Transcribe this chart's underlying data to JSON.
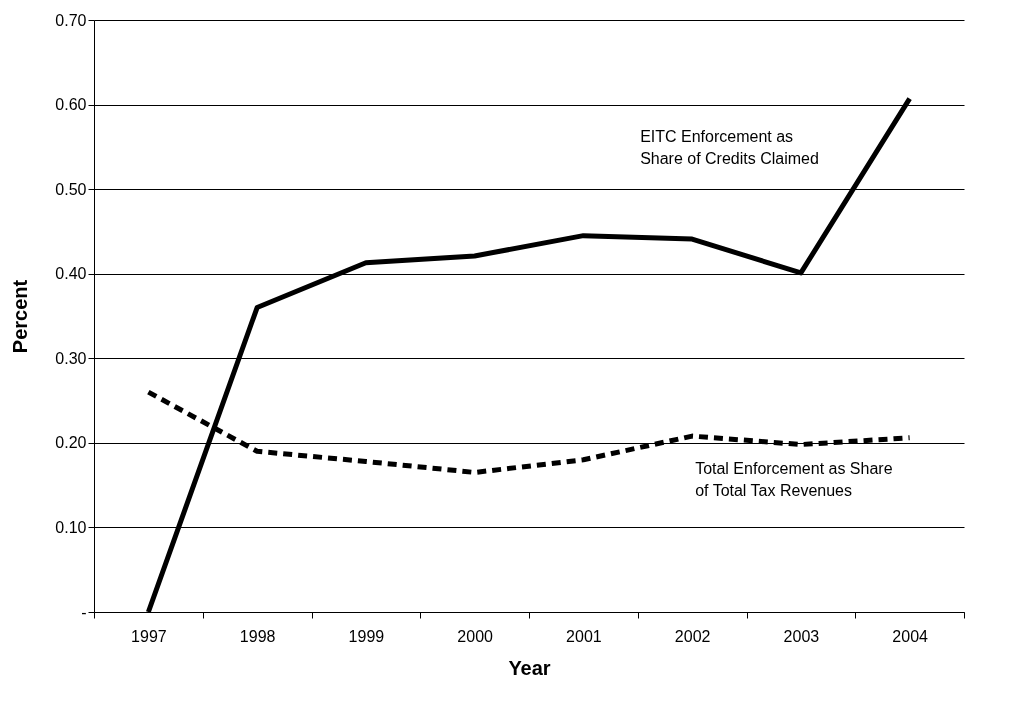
{
  "chart_data": {
    "type": "line",
    "xlabel": "Year",
    "ylabel": "Percent",
    "categories": [
      "1997",
      "1998",
      "1999",
      "2000",
      "2001",
      "2002",
      "2003",
      "2004"
    ],
    "series": [
      {
        "name": "EITC Enforcement as\nShare of Credits Claimed",
        "color": "#000000",
        "line_style": "solid",
        "values": [
          0,
          0.36,
          0.413,
          0.421,
          0.445,
          0.441,
          0.401,
          0.607
        ]
      },
      {
        "name": "Total Enforcement as Share\nof Total Tax Revenues",
        "color": "#000000",
        "line_style": "dashed",
        "values": [
          0.26,
          0.19,
          0.178,
          0.165,
          0.18,
          0.208,
          0.198,
          0.206
        ]
      }
    ],
    "ylim": [
      0,
      0.7
    ],
    "yticks": [
      {
        "value": 0,
        "label": "-"
      },
      {
        "value": 0.1,
        "label": "0.10"
      },
      {
        "value": 0.2,
        "label": "0.20"
      },
      {
        "value": 0.3,
        "label": "0.30"
      },
      {
        "value": 0.4,
        "label": "0.40"
      },
      {
        "value": 0.5,
        "label": "0.50"
      },
      {
        "value": 0.6,
        "label": "0.60"
      },
      {
        "value": 0.7,
        "label": "0.70"
      }
    ],
    "grid": "y",
    "marker": "none"
  }
}
